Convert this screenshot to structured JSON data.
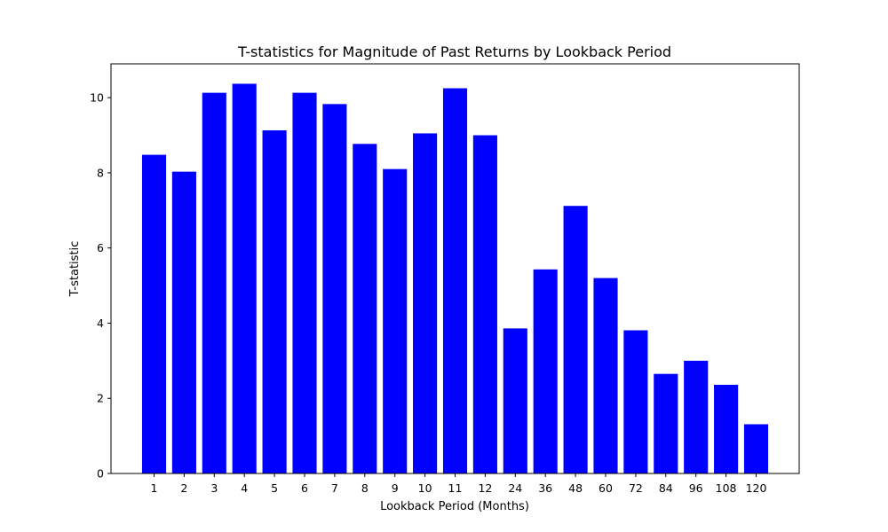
{
  "chart_data": {
    "type": "bar",
    "title": "T-statistics for Magnitude of Past Returns by Lookback Period",
    "xlabel": "Lookback Period (Months)",
    "ylabel": "T-statistic",
    "categories": [
      "1",
      "2",
      "3",
      "4",
      "5",
      "6",
      "7",
      "8",
      "9",
      "10",
      "11",
      "12",
      "24",
      "36",
      "48",
      "60",
      "72",
      "84",
      "96",
      "108",
      "120"
    ],
    "values": [
      8.48,
      8.03,
      10.13,
      10.37,
      9.13,
      10.13,
      9.83,
      8.77,
      8.1,
      9.05,
      10.25,
      9.0,
      3.86,
      5.43,
      7.12,
      5.2,
      3.81,
      2.65,
      3.0,
      2.36,
      1.31
    ],
    "ylim": [
      0,
      10.9
    ],
    "yticks": [
      0,
      2,
      4,
      6,
      8,
      10
    ],
    "bar_color": "#0000ff",
    "grid": false,
    "legend": "none"
  }
}
